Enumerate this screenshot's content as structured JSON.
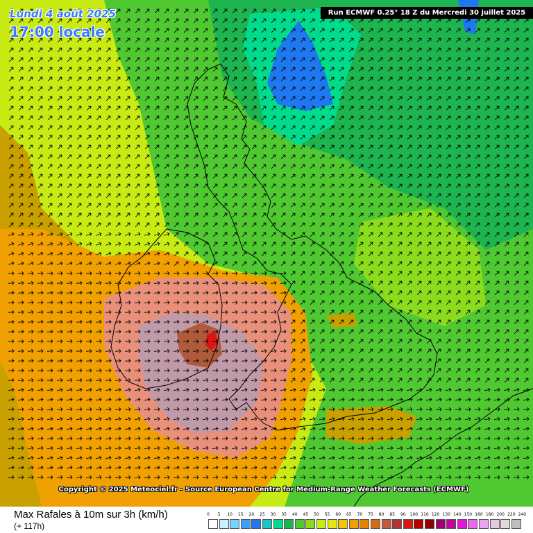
{
  "header": {
    "date_line": "Lundi 4 août 2025",
    "time_line": "17:00 locale",
    "run_label": "Run ECMWF 0.25° 18 Z du Mercredi 30 juillet 2025"
  },
  "copyright": "Copyright © 2025 Meteociel.fr - Source European Centre for Medium-Range Weather Forecasts (ECMWF)",
  "footer": {
    "parameter_title": "Max Rafales à 10m sur 3h (km/h)",
    "lead_time": "(+ 117h)"
  },
  "legend": {
    "ticks": [
      "0",
      "5",
      "10",
      "15",
      "20",
      "25",
      "30",
      "35",
      "40",
      "45",
      "50",
      "55",
      "60",
      "65",
      "70",
      "75",
      "80",
      "85",
      "90",
      "100",
      "110",
      "120",
      "130",
      "140",
      "150",
      "160",
      "180",
      "200",
      "220",
      "240"
    ],
    "colors": [
      "#ffffff",
      "#c8f0ff",
      "#78d2ff",
      "#3ca0f5",
      "#1e78f0",
      "#14c8c8",
      "#00dc8c",
      "#1eb450",
      "#50c832",
      "#8cdc1e",
      "#c8eb14",
      "#e6e60a",
      "#f0c800",
      "#f0a000",
      "#e68200",
      "#d26e14",
      "#c85a3c",
      "#b43232",
      "#dc1414",
      "#b40000",
      "#8c0000",
      "#a0006e",
      "#c800a0",
      "#e614dc",
      "#f064f0",
      "#f0a0f0",
      "#e6c8e6",
      "#dcdcdc",
      "#bebebe"
    ]
  },
  "map": {
    "field_colors": {
      "lime": "#c8eb14",
      "yellow_green": "#8cdc1e",
      "green": "#50c832",
      "green_dark": "#1eb450",
      "teal": "#00dc8c",
      "blue": "#1e78f0",
      "orange": "#f0a000",
      "olive": "#c8a000",
      "salmon": "#e8907a",
      "mauve": "#c09aa8",
      "brown": "#b05a3c",
      "red": "#dc1414"
    },
    "arrow_color": "#000000",
    "coast_color": "#000000"
  }
}
